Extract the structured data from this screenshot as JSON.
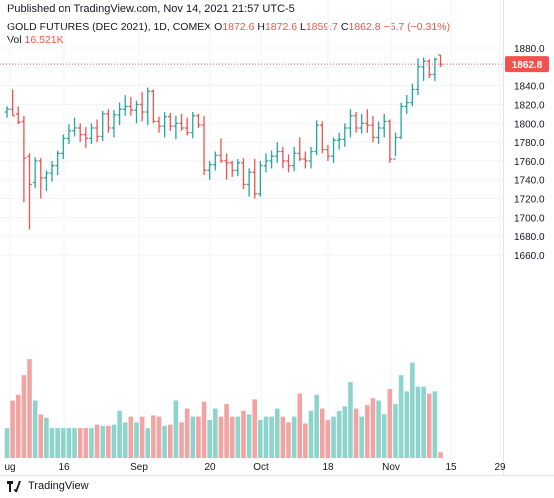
{
  "header": {
    "published": "Published on TradingView.com, Nov 14, 2021 21:57 UTC-5"
  },
  "legend": {
    "symbol": "GOLD FUTURES (DEC 2021), 1D, COMEX",
    "o_label": "O",
    "o_value": "1872.6",
    "h_label": "H",
    "h_value": "1872.6",
    "l_label": "L",
    "l_value": "1859.7",
    "c_label": "C",
    "c_value": "1862.8",
    "change": "−5.7 (−0.31%)",
    "vol_label": "Vol",
    "vol_value": "16.521K"
  },
  "colors": {
    "up": "#26a69a",
    "down": "#ef5350",
    "up_volume": "#8dd4cc",
    "down_volume": "#f2a4a2",
    "grid": "#f0f3fa",
    "axis_text": "#131722"
  },
  "footer": {
    "brand": "TradingView"
  },
  "chart_data": {
    "type": "ohlc",
    "price_axis": {
      "min": 1660,
      "max": 1890,
      "ticks": [
        1660,
        1680,
        1700,
        1720,
        1740,
        1760,
        1780,
        1800,
        1820,
        1840,
        1860,
        1880
      ]
    },
    "last_price": "1862.8",
    "x_ticks": [
      "ug",
      "16",
      "Sep",
      "20",
      "Oct",
      "18",
      "Nov",
      "15",
      "29"
    ],
    "bars": [
      {
        "o": 1812,
        "h": 1818,
        "l": 1806,
        "c": 1815,
        "v": 0.26,
        "up": true
      },
      {
        "o": 1815,
        "h": 1836,
        "l": 1808,
        "c": 1808,
        "v": 0.5,
        "up": false
      },
      {
        "o": 1810,
        "h": 1818,
        "l": 1799,
        "c": 1801,
        "v": 0.55,
        "up": false
      },
      {
        "o": 1802,
        "h": 1808,
        "l": 1716,
        "c": 1763,
        "v": 0.72,
        "up": false
      },
      {
        "o": 1765,
        "h": 1768,
        "l": 1687,
        "c": 1735,
        "v": 0.86,
        "up": false
      },
      {
        "o": 1737,
        "h": 1764,
        "l": 1731,
        "c": 1760,
        "v": 0.5,
        "up": true
      },
      {
        "o": 1760,
        "h": 1763,
        "l": 1720,
        "c": 1742,
        "v": 0.38,
        "up": false
      },
      {
        "o": 1742,
        "h": 1750,
        "l": 1728,
        "c": 1747,
        "v": 0.35,
        "up": true
      },
      {
        "o": 1747,
        "h": 1760,
        "l": 1738,
        "c": 1755,
        "v": 0.26,
        "up": true
      },
      {
        "o": 1755,
        "h": 1771,
        "l": 1745,
        "c": 1768,
        "v": 0.26,
        "up": true
      },
      {
        "o": 1768,
        "h": 1788,
        "l": 1762,
        "c": 1784,
        "v": 0.26,
        "up": true
      },
      {
        "o": 1784,
        "h": 1799,
        "l": 1778,
        "c": 1792,
        "v": 0.26,
        "up": true
      },
      {
        "o": 1792,
        "h": 1806,
        "l": 1786,
        "c": 1795,
        "v": 0.26,
        "up": true
      },
      {
        "o": 1795,
        "h": 1800,
        "l": 1780,
        "c": 1788,
        "v": 0.26,
        "up": false
      },
      {
        "o": 1788,
        "h": 1796,
        "l": 1774,
        "c": 1784,
        "v": 0.26,
        "up": false
      },
      {
        "o": 1784,
        "h": 1800,
        "l": 1778,
        "c": 1795,
        "v": 0.26,
        "up": true
      },
      {
        "o": 1795,
        "h": 1804,
        "l": 1780,
        "c": 1786,
        "v": 0.29,
        "up": false
      },
      {
        "o": 1786,
        "h": 1813,
        "l": 1781,
        "c": 1810,
        "v": 0.28,
        "up": true
      },
      {
        "o": 1810,
        "h": 1815,
        "l": 1790,
        "c": 1795,
        "v": 0.28,
        "up": false
      },
      {
        "o": 1795,
        "h": 1814,
        "l": 1785,
        "c": 1809,
        "v": 0.29,
        "up": true
      },
      {
        "o": 1809,
        "h": 1822,
        "l": 1798,
        "c": 1815,
        "v": 0.41,
        "up": true
      },
      {
        "o": 1815,
        "h": 1830,
        "l": 1808,
        "c": 1818,
        "v": 0.31,
        "up": true
      },
      {
        "o": 1818,
        "h": 1828,
        "l": 1808,
        "c": 1814,
        "v": 0.36,
        "up": false
      },
      {
        "o": 1814,
        "h": 1824,
        "l": 1800,
        "c": 1820,
        "v": 0.31,
        "up": true
      },
      {
        "o": 1820,
        "h": 1833,
        "l": 1802,
        "c": 1812,
        "v": 0.36,
        "up": false
      },
      {
        "o": 1812,
        "h": 1838,
        "l": 1798,
        "c": 1834,
        "v": 0.26,
        "up": true
      },
      {
        "o": 1834,
        "h": 1836,
        "l": 1800,
        "c": 1802,
        "v": 0.37,
        "up": false
      },
      {
        "o": 1802,
        "h": 1807,
        "l": 1790,
        "c": 1797,
        "v": 0.36,
        "up": false
      },
      {
        "o": 1797,
        "h": 1812,
        "l": 1785,
        "c": 1807,
        "v": 0.28,
        "up": true
      },
      {
        "o": 1807,
        "h": 1811,
        "l": 1792,
        "c": 1797,
        "v": 0.29,
        "up": false
      },
      {
        "o": 1797,
        "h": 1808,
        "l": 1783,
        "c": 1800,
        "v": 0.5,
        "up": true
      },
      {
        "o": 1800,
        "h": 1810,
        "l": 1792,
        "c": 1795,
        "v": 0.31,
        "up": false
      },
      {
        "o": 1795,
        "h": 1806,
        "l": 1787,
        "c": 1790,
        "v": 0.43,
        "up": false
      },
      {
        "o": 1790,
        "h": 1812,
        "l": 1784,
        "c": 1808,
        "v": 0.36,
        "up": true
      },
      {
        "o": 1808,
        "h": 1810,
        "l": 1795,
        "c": 1798,
        "v": 0.36,
        "up": false
      },
      {
        "o": 1798,
        "h": 1808,
        "l": 1745,
        "c": 1750,
        "v": 0.49,
        "up": false
      },
      {
        "o": 1750,
        "h": 1760,
        "l": 1740,
        "c": 1756,
        "v": 0.33,
        "up": true
      },
      {
        "o": 1756,
        "h": 1770,
        "l": 1750,
        "c": 1766,
        "v": 0.43,
        "up": true
      },
      {
        "o": 1766,
        "h": 1784,
        "l": 1758,
        "c": 1760,
        "v": 0.36,
        "up": false
      },
      {
        "o": 1760,
        "h": 1768,
        "l": 1740,
        "c": 1758,
        "v": 0.47,
        "up": false
      },
      {
        "o": 1758,
        "h": 1760,
        "l": 1743,
        "c": 1750,
        "v": 0.36,
        "up": false
      },
      {
        "o": 1750,
        "h": 1762,
        "l": 1744,
        "c": 1758,
        "v": 0.36,
        "up": true
      },
      {
        "o": 1758,
        "h": 1763,
        "l": 1730,
        "c": 1735,
        "v": 0.41,
        "up": false
      },
      {
        "o": 1735,
        "h": 1752,
        "l": 1722,
        "c": 1748,
        "v": 0.38,
        "up": true
      },
      {
        "o": 1748,
        "h": 1762,
        "l": 1720,
        "c": 1725,
        "v": 0.51,
        "up": false
      },
      {
        "o": 1725,
        "h": 1760,
        "l": 1722,
        "c": 1755,
        "v": 0.33,
        "up": true
      },
      {
        "o": 1755,
        "h": 1768,
        "l": 1748,
        "c": 1760,
        "v": 0.36,
        "up": true
      },
      {
        "o": 1760,
        "h": 1771,
        "l": 1752,
        "c": 1765,
        "v": 0.36,
        "up": true
      },
      {
        "o": 1765,
        "h": 1780,
        "l": 1758,
        "c": 1770,
        "v": 0.43,
        "up": true
      },
      {
        "o": 1770,
        "h": 1775,
        "l": 1752,
        "c": 1760,
        "v": 0.36,
        "up": false
      },
      {
        "o": 1760,
        "h": 1767,
        "l": 1748,
        "c": 1755,
        "v": 0.31,
        "up": false
      },
      {
        "o": 1755,
        "h": 1775,
        "l": 1749,
        "c": 1768,
        "v": 0.36,
        "up": true
      },
      {
        "o": 1768,
        "h": 1785,
        "l": 1760,
        "c": 1762,
        "v": 0.56,
        "up": false
      },
      {
        "o": 1762,
        "h": 1770,
        "l": 1752,
        "c": 1760,
        "v": 0.3,
        "up": false
      },
      {
        "o": 1760,
        "h": 1775,
        "l": 1752,
        "c": 1770,
        "v": 0.41,
        "up": true
      },
      {
        "o": 1770,
        "h": 1803,
        "l": 1766,
        "c": 1798,
        "v": 0.55,
        "up": true
      },
      {
        "o": 1798,
        "h": 1802,
        "l": 1768,
        "c": 1772,
        "v": 0.43,
        "up": false
      },
      {
        "o": 1772,
        "h": 1777,
        "l": 1760,
        "c": 1765,
        "v": 0.33,
        "up": false
      },
      {
        "o": 1765,
        "h": 1785,
        "l": 1758,
        "c": 1782,
        "v": 0.36,
        "up": true
      },
      {
        "o": 1782,
        "h": 1790,
        "l": 1772,
        "c": 1783,
        "v": 0.41,
        "up": true
      },
      {
        "o": 1783,
        "h": 1800,
        "l": 1775,
        "c": 1795,
        "v": 0.45,
        "up": true
      },
      {
        "o": 1795,
        "h": 1815,
        "l": 1785,
        "c": 1808,
        "v": 0.66,
        "up": true
      },
      {
        "o": 1808,
        "h": 1812,
        "l": 1790,
        "c": 1795,
        "v": 0.43,
        "up": false
      },
      {
        "o": 1795,
        "h": 1810,
        "l": 1789,
        "c": 1800,
        "v": 0.36,
        "up": true
      },
      {
        "o": 1800,
        "h": 1815,
        "l": 1790,
        "c": 1798,
        "v": 0.46,
        "up": false
      },
      {
        "o": 1798,
        "h": 1808,
        "l": 1780,
        "c": 1785,
        "v": 0.52,
        "up": false
      },
      {
        "o": 1785,
        "h": 1802,
        "l": 1778,
        "c": 1795,
        "v": 0.5,
        "up": true
      },
      {
        "o": 1795,
        "h": 1810,
        "l": 1785,
        "c": 1802,
        "v": 0.38,
        "up": true
      },
      {
        "o": 1802,
        "h": 1804,
        "l": 1758,
        "c": 1762,
        "v": 0.6,
        "up": false
      },
      {
        "o": 1762,
        "h": 1790,
        "l": 1765,
        "c": 1785,
        "v": 0.47,
        "up": true
      },
      {
        "o": 1785,
        "h": 1822,
        "l": 1783,
        "c": 1818,
        "v": 0.72,
        "up": true
      },
      {
        "o": 1818,
        "h": 1830,
        "l": 1810,
        "c": 1822,
        "v": 0.58,
        "up": true
      },
      {
        "o": 1822,
        "h": 1842,
        "l": 1818,
        "c": 1836,
        "v": 0.83,
        "up": true
      },
      {
        "o": 1836,
        "h": 1869,
        "l": 1830,
        "c": 1860,
        "v": 0.62,
        "up": true
      },
      {
        "o": 1860,
        "h": 1870,
        "l": 1845,
        "c": 1866,
        "v": 0.62,
        "up": true
      },
      {
        "o": 1866,
        "h": 1868,
        "l": 1848,
        "c": 1852,
        "v": 0.56,
        "up": false
      },
      {
        "o": 1852,
        "h": 1870,
        "l": 1845,
        "c": 1868,
        "v": 0.58,
        "up": true
      },
      {
        "o": 1872.6,
        "h": 1872.6,
        "l": 1859.7,
        "c": 1862.8,
        "v": 0.05,
        "up": false
      }
    ]
  }
}
